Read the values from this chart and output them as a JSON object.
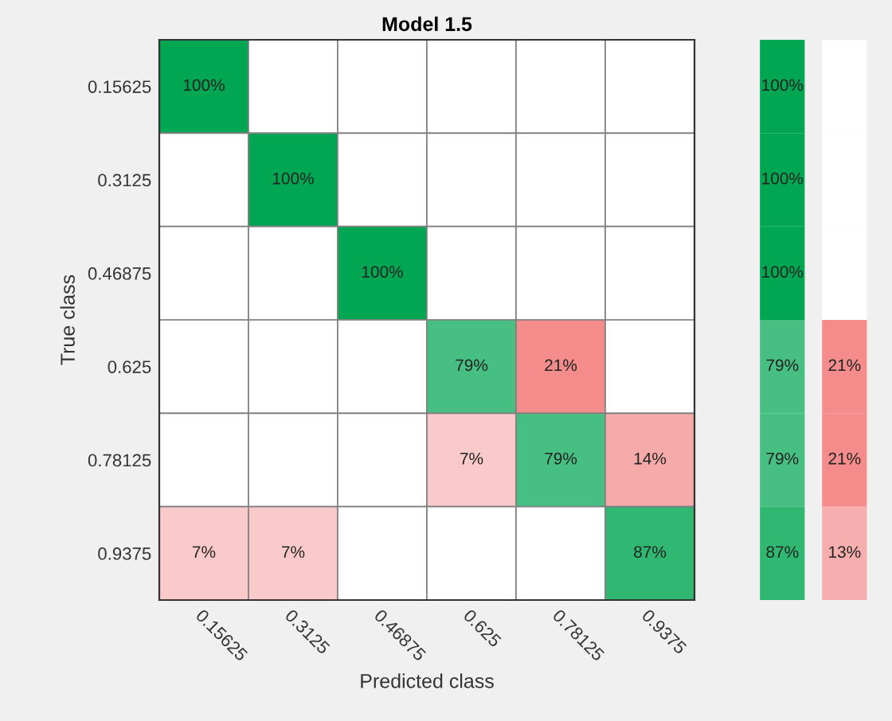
{
  "chart_data": [
    {
      "type": "heatmap",
      "title": "Model 1.5",
      "xlabel": "Predicted class",
      "ylabel": "True class",
      "categories": [
        "0.15625",
        "0.3125",
        "0.46875",
        "0.625",
        "0.78125",
        "0.9375"
      ],
      "y_categories": [
        "0.15625",
        "0.3125",
        "0.46875",
        "0.625",
        "0.78125",
        "0.9375"
      ],
      "cells": [
        [
          100,
          null,
          null,
          null,
          null,
          null
        ],
        [
          null,
          100,
          null,
          null,
          null,
          null
        ],
        [
          null,
          null,
          100,
          null,
          null,
          null
        ],
        [
          null,
          null,
          null,
          79,
          21,
          null
        ],
        [
          null,
          null,
          null,
          7,
          79,
          14
        ],
        [
          7,
          7,
          null,
          null,
          null,
          87
        ]
      ],
      "cell_labels": [
        [
          "100%",
          null,
          null,
          null,
          null,
          null
        ],
        [
          null,
          "100%",
          null,
          null,
          null,
          null
        ],
        [
          null,
          null,
          "100%",
          null,
          null,
          null
        ],
        [
          null,
          null,
          null,
          "79%",
          "21%",
          null
        ],
        [
          null,
          null,
          null,
          "7%",
          "79%",
          "14%"
        ],
        [
          "7%",
          "7%",
          null,
          null,
          null,
          "87%"
        ]
      ]
    },
    {
      "type": "heatmap",
      "categories": [
        null,
        null
      ],
      "y_categories": [
        "0.15625",
        "0.3125",
        "0.46875",
        "0.625",
        "0.78125",
        "0.9375"
      ],
      "tick_labels": false,
      "cells": [
        [
          100,
          null
        ],
        [
          100,
          null
        ],
        [
          100,
          null
        ],
        [
          79,
          21
        ],
        [
          79,
          21
        ],
        [
          87,
          13
        ]
      ],
      "cell_labels": [
        [
          "100%",
          null
        ],
        [
          "100%",
          null
        ],
        [
          "100%",
          null
        ],
        [
          "79%",
          "21%"
        ],
        [
          "79%",
          "21%"
        ],
        [
          "87%",
          "13%"
        ]
      ]
    }
  ]
}
